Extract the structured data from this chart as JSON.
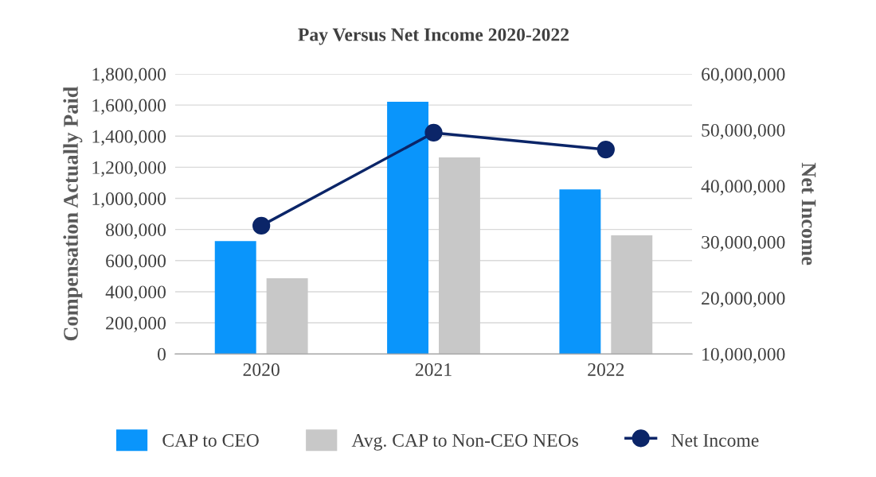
{
  "chart_data": {
    "type": "bar",
    "title": "Pay Versus Net Income 2020-2022",
    "ylabel": "Compensation Actually Paid",
    "y2label": "Net Income",
    "categories": [
      "2020",
      "2021",
      "2022"
    ],
    "series": [
      {
        "name": "CAP to CEO",
        "color": "#0a95fb",
        "values": [
          726000,
          1621000,
          1058000
        ]
      },
      {
        "name": "Avg. CAP to Non-CEO NEOs",
        "color": "#c8c8c8",
        "values": [
          486000,
          1263000,
          762000
        ]
      },
      {
        "name": "Net Income",
        "type": "line",
        "axis": "y2",
        "color": "#0b2568",
        "marker": "circle",
        "values": [
          32900000,
          49500000,
          46500000
        ]
      }
    ],
    "ylim": [
      0,
      1800000
    ],
    "yticks": [
      {
        "value": 0,
        "label": "0"
      },
      {
        "value": 200000,
        "label": "200,000"
      },
      {
        "value": 400000,
        "label": "400,000"
      },
      {
        "value": 600000,
        "label": "600,000"
      },
      {
        "value": 800000,
        "label": "800,000"
      },
      {
        "value": 1000000,
        "label": "1,000,000"
      },
      {
        "value": 1200000,
        "label": "1,200,000"
      },
      {
        "value": 1400000,
        "label": "1,400,000"
      },
      {
        "value": 1600000,
        "label": "1,600,000"
      },
      {
        "value": 1800000,
        "label": "1,800,000"
      }
    ],
    "y2lim": [
      10000000,
      60000000
    ],
    "y2ticks": [
      {
        "value": 10000000,
        "label": "10,000,000"
      },
      {
        "value": 20000000,
        "label": "20,000,000"
      },
      {
        "value": 30000000,
        "label": "30,000,000"
      },
      {
        "value": 40000000,
        "label": "40,000,000"
      },
      {
        "value": 50000000,
        "label": "50,000,000"
      },
      {
        "value": 60000000,
        "label": "60,000,000"
      }
    ],
    "grid": "y",
    "legend": "bottom"
  }
}
